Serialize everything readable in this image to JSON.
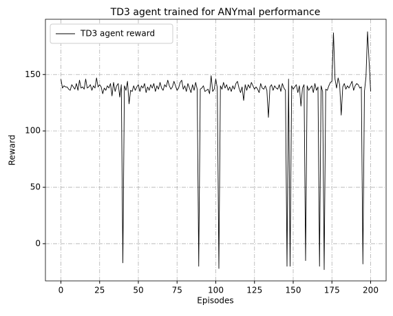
{
  "chart_data": {
    "type": "line",
    "title": "TD3 agent trained for ANYmal performance",
    "xlabel": "Episodes",
    "ylabel": "Reward",
    "x": [
      0,
      1,
      2,
      3,
      4,
      5,
      6,
      7,
      8,
      9,
      10,
      11,
      12,
      13,
      14,
      15,
      16,
      17,
      18,
      19,
      20,
      21,
      22,
      23,
      24,
      25,
      26,
      27,
      28,
      29,
      30,
      31,
      32,
      33,
      34,
      35,
      36,
      37,
      38,
      39,
      40,
      41,
      42,
      43,
      44,
      45,
      46,
      47,
      48,
      49,
      50,
      51,
      52,
      53,
      54,
      55,
      56,
      57,
      58,
      59,
      60,
      61,
      62,
      63,
      64,
      65,
      66,
      67,
      68,
      69,
      70,
      71,
      72,
      73,
      74,
      75,
      76,
      77,
      78,
      79,
      80,
      81,
      82,
      83,
      84,
      85,
      86,
      87,
      88,
      89,
      90,
      91,
      92,
      93,
      94,
      95,
      96,
      97,
      98,
      99,
      100,
      101,
      102,
      103,
      104,
      105,
      106,
      107,
      108,
      109,
      110,
      111,
      112,
      113,
      114,
      115,
      116,
      117,
      118,
      119,
      120,
      121,
      122,
      123,
      124,
      125,
      126,
      127,
      128,
      129,
      130,
      131,
      132,
      133,
      134,
      135,
      136,
      137,
      138,
      139,
      140,
      141,
      142,
      143,
      144,
      145,
      146,
      147,
      148,
      149,
      150,
      151,
      152,
      153,
      154,
      155,
      156,
      157,
      158,
      159,
      160,
      161,
      162,
      163,
      164,
      165,
      166,
      167,
      168,
      169,
      170,
      171,
      172,
      173,
      174,
      175,
      176,
      177,
      178,
      179,
      180,
      181,
      182,
      183,
      184,
      185,
      186,
      187,
      188,
      189,
      190,
      191,
      192,
      193,
      194,
      195,
      196,
      197,
      198,
      199,
      200
    ],
    "series": [
      {
        "name": "TD3 agent reward",
        "color": "#000000",
        "values": [
          146,
          138,
          140,
          139,
          139,
          137,
          136,
          141,
          139,
          137,
          142,
          136,
          145,
          138,
          139,
          137,
          146,
          138,
          139,
          141,
          136,
          140,
          138,
          147,
          139,
          141,
          139,
          133,
          138,
          136,
          140,
          138,
          142,
          131,
          143,
          135,
          140,
          142,
          130,
          141,
          -17,
          140,
          136,
          144,
          124,
          136,
          135,
          140,
          136,
          139,
          141,
          135,
          140,
          138,
          142,
          134,
          139,
          136,
          141,
          138,
          142,
          135,
          140,
          137,
          143,
          138,
          136,
          141,
          139,
          145,
          140,
          137,
          139,
          144,
          140,
          136,
          138,
          143,
          145,
          137,
          140,
          135,
          142,
          138,
          134,
          141,
          136,
          143,
          137,
          -20,
          137,
          138,
          140,
          135,
          136,
          137,
          133,
          149,
          135,
          137,
          146,
          138,
          -22,
          140,
          137,
          143,
          138,
          141,
          136,
          139,
          135,
          140,
          137,
          142,
          144,
          138,
          134,
          139,
          127,
          141,
          136,
          141,
          138,
          143,
          140,
          137,
          139,
          137,
          134,
          142,
          138,
          137,
          140,
          136,
          112,
          139,
          141,
          136,
          140,
          138,
          137,
          141,
          135,
          142,
          138,
          136,
          -20,
          146,
          -20,
          140,
          137,
          139,
          141,
          134,
          140,
          122,
          138,
          141,
          -15,
          140,
          136,
          138,
          140,
          134,
          142,
          136,
          139,
          -20,
          140,
          135,
          -23,
          137,
          136,
          140,
          143,
          144,
          187,
          146,
          138,
          147,
          141,
          114,
          139,
          142,
          137,
          140,
          138,
          141,
          144,
          136,
          140,
          142,
          141,
          138,
          139,
          -18,
          135,
          148,
          188,
          162,
          135
        ]
      }
    ],
    "xlim": [
      -10,
      210
    ],
    "ylim": [
      -33,
      199
    ],
    "xticks": [
      0,
      25,
      50,
      75,
      100,
      125,
      150,
      175,
      200
    ],
    "yticks": [
      0,
      50,
      100,
      150
    ],
    "grid": true,
    "legend": "upper left"
  }
}
